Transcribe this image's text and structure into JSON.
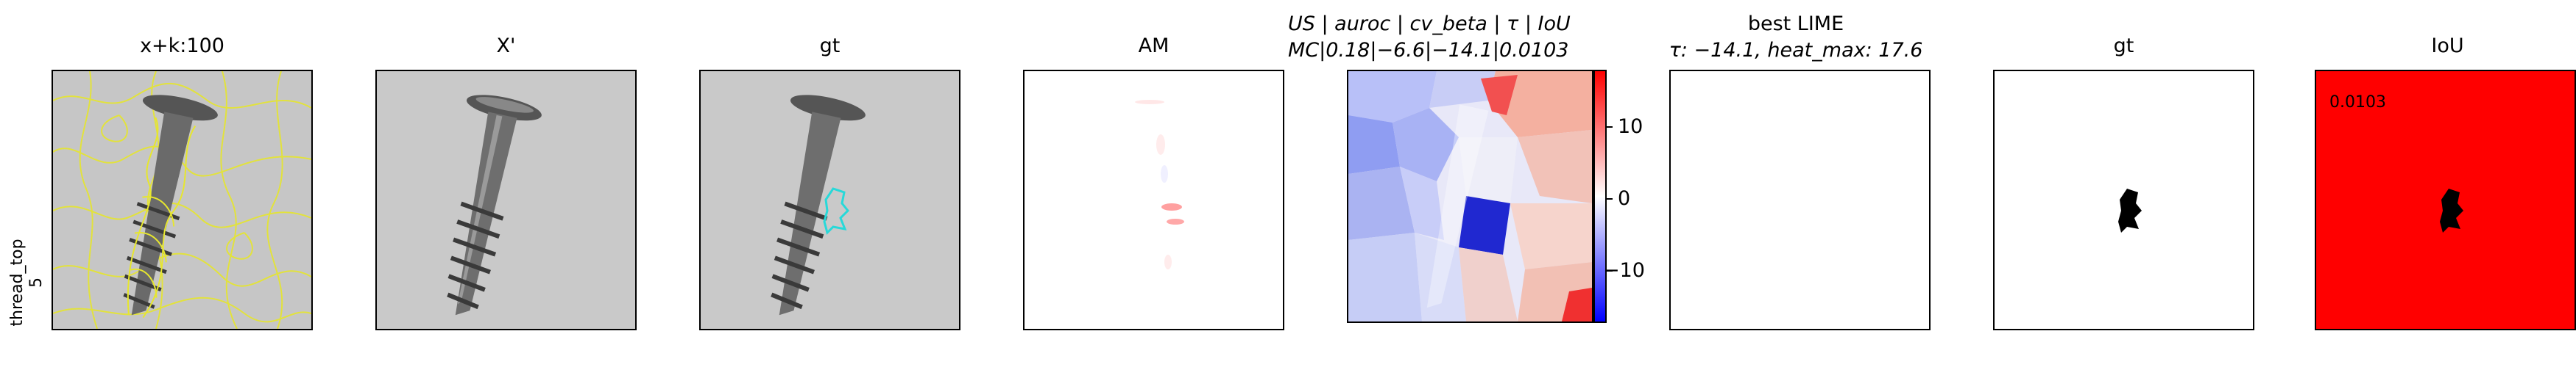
{
  "row_label": {
    "line1": "thread_top",
    "line2": "5"
  },
  "panels": {
    "p1": {
      "title": "x+k:100"
    },
    "p2": {
      "title": "X'"
    },
    "p3": {
      "title": "gt"
    },
    "p4": {
      "title": "AM"
    },
    "p5": {
      "title_line1": "US | auroc | cv_beta | τ | IoU",
      "title_line2": "MC|0.18|−6.6|−14.1|0.0103"
    },
    "p6": {
      "title_line1": "best LIME",
      "title_line2": "τ: −14.1, heat_max: 17.6"
    },
    "p7": {
      "title": "gt"
    },
    "p8": {
      "title": "IoU",
      "value_label": "0.0103"
    }
  },
  "colorbar": {
    "ticks": [
      "10",
      "0",
      "−10"
    ]
  },
  "colors": {
    "contour_yellow": "#e6e62e",
    "gt_cyan": "#27d9d9",
    "iou_red": "#ff0000"
  }
}
